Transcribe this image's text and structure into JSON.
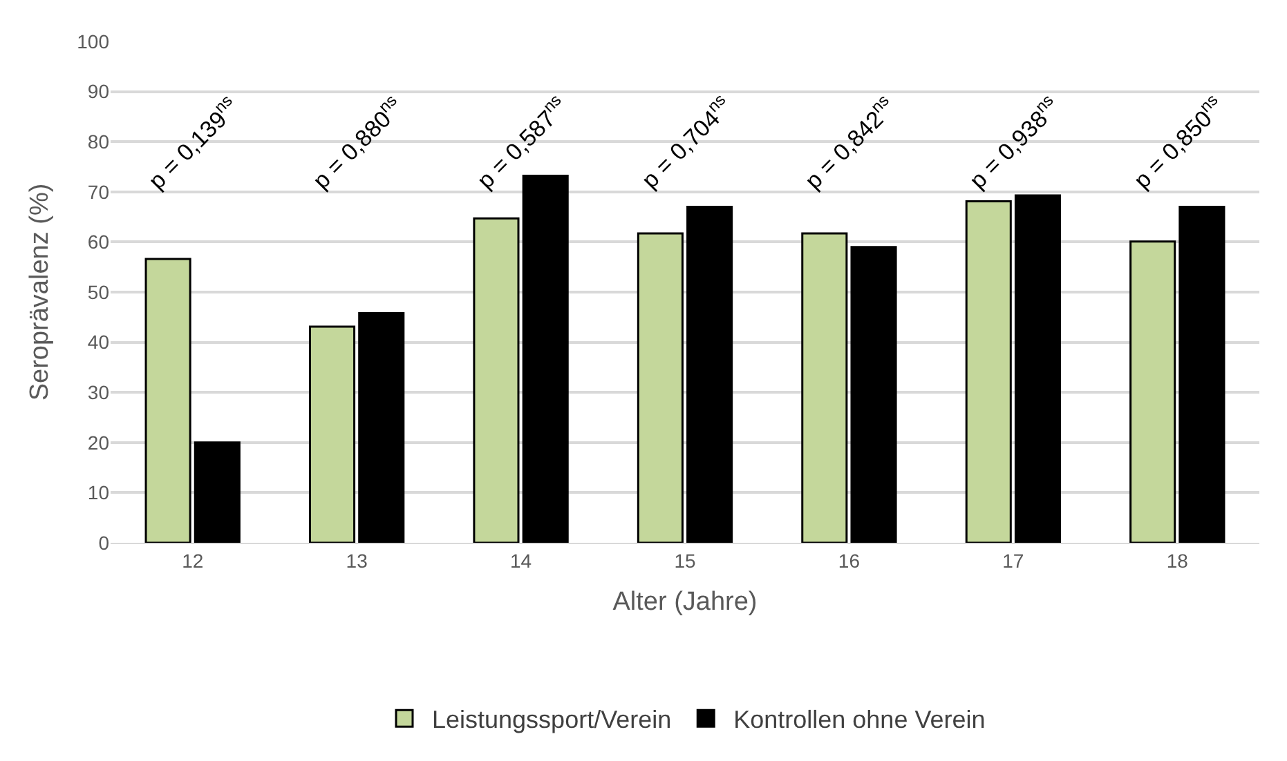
{
  "chart_data": {
    "type": "bar",
    "xlabel": "Alter (Jahre)",
    "ylabel": "Seroprävalenz (%)",
    "categories": [
      "12",
      "13",
      "14",
      "15",
      "16",
      "17",
      "18"
    ],
    "series": [
      {
        "name": "Leistungssport/Verein",
        "color": "#c4d79b",
        "values": [
          56.6,
          43.1,
          64.7,
          61.7,
          61.7,
          68.1,
          60.1
        ]
      },
      {
        "name": "Kontrollen ohne Verein",
        "color": "#000000",
        "values": [
          20,
          45.8,
          73.2,
          67,
          59,
          69.3,
          67
        ]
      }
    ],
    "ylim": [
      0,
      100
    ],
    "yticks": [
      0,
      10,
      20,
      30,
      40,
      50,
      60,
      70,
      80,
      90,
      100
    ],
    "grid": "y",
    "legend": "bottom",
    "annotations": [
      "p = 0,139$^{ns}$",
      "p = 0,880$^{ns}$",
      "p = 0,587$^{ns}$",
      "p = 0,704$^{ns}$",
      "p = 0,842$^{ns}$",
      "p = 0,938$^{ns}$",
      "p = 0,850$^{ns}$"
    ]
  }
}
